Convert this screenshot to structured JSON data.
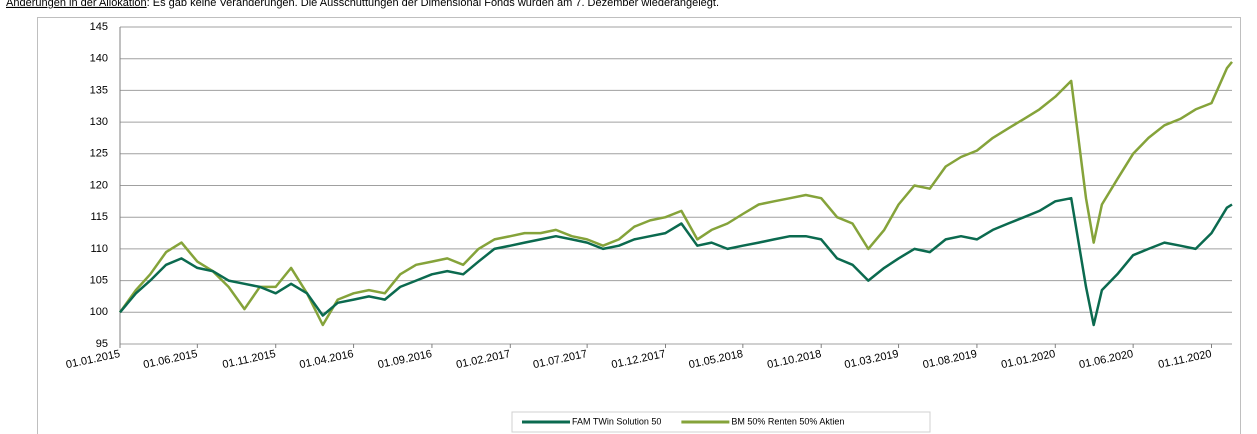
{
  "note_heading": "Änderungen in der Allokation",
  "note_text": ": Es gab keine Veränderungen. Die Ausschüttungen der Dimensional Fonds wurden am 7. Dezember wiederangelegt.",
  "chart_data": {
    "type": "line",
    "x": [
      "01.01.2015",
      "01.02.2015",
      "01.03.2015",
      "01.04.2015",
      "01.05.2015",
      "01.06.2015",
      "01.07.2015",
      "01.08.2015",
      "01.09.2015",
      "01.10.2015",
      "01.11.2015",
      "01.12.2015",
      "01.01.2016",
      "01.02.2016",
      "01.03.2016",
      "01.04.2016",
      "01.05.2016",
      "01.06.2016",
      "01.07.2016",
      "01.08.2016",
      "01.09.2016",
      "01.10.2016",
      "01.11.2016",
      "01.12.2016",
      "01.01.2017",
      "01.02.2017",
      "01.03.2017",
      "01.04.2017",
      "01.05.2017",
      "01.06.2017",
      "01.07.2017",
      "01.08.2017",
      "01.09.2017",
      "01.10.2017",
      "01.11.2017",
      "01.12.2017",
      "01.01.2018",
      "01.02.2018",
      "01.03.2018",
      "01.04.2018",
      "01.05.2018",
      "01.06.2018",
      "01.07.2018",
      "01.08.2018",
      "01.09.2018",
      "01.10.2018",
      "01.11.2018",
      "01.12.2018",
      "01.01.2019",
      "01.02.2019",
      "01.03.2019",
      "01.04.2019",
      "01.05.2019",
      "01.06.2019",
      "01.07.2019",
      "01.08.2019",
      "01.09.2019",
      "01.10.2019",
      "01.11.2019",
      "01.12.2019",
      "01.01.2020",
      "01.02.2020",
      "01.03.2020",
      "16.03.2020",
      "01.04.2020",
      "01.05.2020",
      "01.06.2020",
      "01.07.2020",
      "01.08.2020",
      "01.09.2020",
      "01.10.2020",
      "01.11.2020",
      "01.12.2020",
      "11.12.2020"
    ],
    "series": [
      {
        "name": "FAM TWin Solution 50",
        "color": "#0b6a4f",
        "values": [
          100,
          103,
          105,
          107.5,
          108.5,
          107,
          106.5,
          105,
          104.5,
          104,
          103,
          104.5,
          103,
          99.5,
          101.5,
          102,
          102.5,
          102,
          104,
          105,
          106,
          106.5,
          106,
          108,
          110,
          110.5,
          111,
          111.5,
          112,
          111.5,
          111,
          110,
          110.5,
          111.5,
          112,
          112.5,
          114,
          110.5,
          111,
          110,
          110.5,
          111,
          111.5,
          112,
          112,
          111.5,
          108.5,
          107.5,
          105,
          107,
          108.5,
          110,
          109.5,
          111.5,
          112,
          111.5,
          113,
          114,
          115,
          116,
          117.5,
          118,
          104,
          98,
          103.5,
          106,
          109,
          110,
          111,
          110.5,
          110,
          112.5,
          116.5,
          117
        ]
      },
      {
        "name": "BM 50% Renten 50% Aktien",
        "color": "#85a33a",
        "values": [
          100,
          103.5,
          106,
          109.5,
          111,
          108,
          106.5,
          104,
          100.5,
          104,
          104,
          107,
          103,
          98,
          102,
          103,
          103.5,
          103,
          106,
          107.5,
          108,
          108.5,
          107.5,
          110,
          111.5,
          112,
          112.5,
          112.5,
          113,
          112,
          111.5,
          110.5,
          111.5,
          113.5,
          114.5,
          115,
          116,
          111.5,
          113,
          114,
          115.5,
          117,
          117.5,
          118,
          118.5,
          118,
          115,
          114,
          110,
          113,
          117,
          120,
          119.5,
          123,
          124.5,
          125.5,
          127.5,
          129,
          130.5,
          132,
          134,
          136.5,
          118,
          111,
          117,
          121,
          125,
          127.5,
          129.5,
          130.5,
          132,
          133,
          138.5,
          139.5
        ]
      }
    ],
    "xlim": [
      "01.01.2015",
      "11.12.2020"
    ],
    "xticks": [
      "01.01.2015",
      "01.06.2015",
      "01.11.2015",
      "01.04.2016",
      "01.09.2016",
      "01.02.2017",
      "01.07.2017",
      "01.12.2017",
      "01.05.2018",
      "01.10.2018",
      "01.03.2019",
      "01.08.2019",
      "01.01.2020",
      "01.06.2020",
      "01.11.2020"
    ],
    "ylim": [
      95,
      145
    ],
    "yticks": [
      95,
      100,
      105,
      110,
      115,
      120,
      125,
      130,
      135,
      140,
      145
    ],
    "grid": true,
    "legend": "bottom"
  }
}
